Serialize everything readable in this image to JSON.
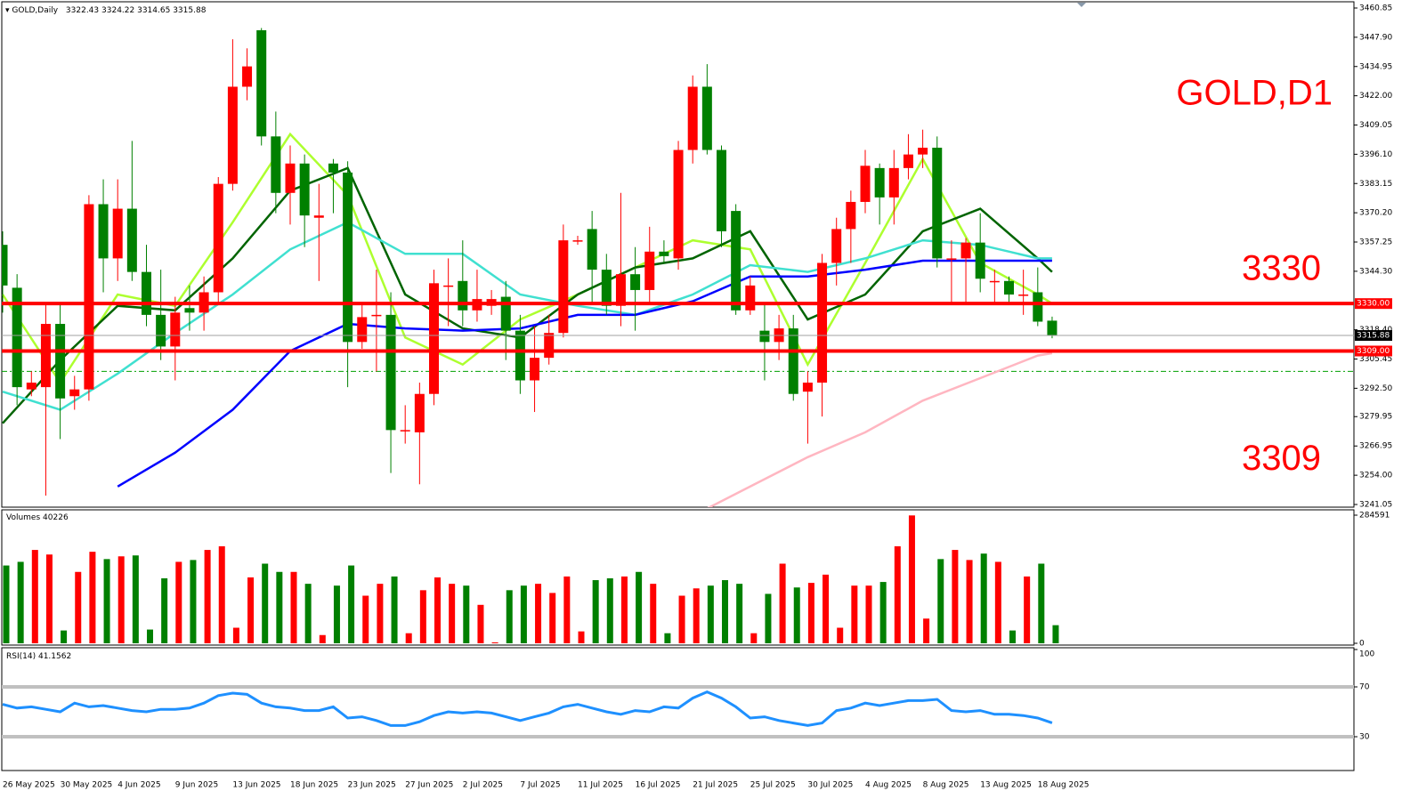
{
  "chart_data": [
    {
      "type": "candlestick",
      "title": "GOLD,Daily",
      "annotation": "GOLD,D1",
      "categories": [
        "26 May 2025",
        null,
        null,
        null,
        "30 May 2025",
        null,
        null,
        null,
        "4 Jun 2025",
        null,
        null,
        null,
        "9 Jun 2025",
        null,
        null,
        null,
        "13 Jun 2025",
        null,
        null,
        null,
        "18 Jun 2025",
        null,
        null,
        null,
        "23 Jun 2025",
        null,
        null,
        null,
        "27 Jun 2025",
        null,
        null,
        null,
        "2 Jul 2025",
        null,
        null,
        null,
        "7 Jul 2025",
        null,
        null,
        null,
        "11 Jul 2025",
        null,
        null,
        null,
        "16 Jul 2025",
        null,
        null,
        null,
        "21 Jul 2025",
        null,
        null,
        null,
        "25 Jul 2025",
        null,
        null,
        null,
        "30 Jul 2025",
        null,
        null,
        null,
        "4 Aug 2025",
        null,
        null,
        null,
        "8 Aug 2025",
        null,
        null,
        null,
        "13 Aug 2025",
        null,
        null,
        null,
        "18 Aug 2025",
        null
      ],
      "open": [
        3356,
        3337,
        3292,
        3293,
        3321,
        3289,
        3292,
        3374,
        3350,
        3372,
        3344,
        3325,
        3311,
        3328,
        3326,
        3335,
        3383,
        3426,
        3451,
        3404,
        3379,
        3392,
        3368,
        3392,
        3388,
        3313,
        3325,
        3325,
        3274,
        3273,
        3290,
        3338,
        3340,
        3327,
        3329,
        3333,
        3318,
        3296,
        3306,
        3317,
        3358,
        3363,
        3345,
        3329,
        3343,
        3336,
        3353,
        3350,
        3398,
        3426,
        3398,
        3371,
        3327,
        3318,
        3313,
        3319,
        3291,
        3295,
        3348,
        3363,
        3375,
        3390,
        3377,
        3390,
        3396,
        3399,
        3350,
        3350,
        3357,
        3340,
        3340,
        3334,
        3335,
        3322.43
      ],
      "high": [
        3362,
        3343,
        3300,
        3330,
        3330,
        3298,
        3378,
        3385,
        3385,
        3402,
        3356,
        3345,
        3333,
        3338,
        3342,
        3386,
        3447,
        3443,
        3452,
        3415,
        3400,
        3396,
        3383,
        3394,
        3393,
        3330,
        3345,
        3335,
        3285,
        3295,
        3345,
        3350,
        3358,
        3345,
        3336,
        3340,
        3325,
        3320,
        3325,
        3365,
        3360,
        3371,
        3352,
        3379,
        3355,
        3364,
        3358,
        3402,
        3431,
        3436,
        3400,
        3374,
        3342,
        3330,
        3325,
        3325,
        3300,
        3352,
        3368,
        3380,
        3398,
        3392,
        3398,
        3405,
        3407,
        3404,
        3358,
        3359,
        3370,
        3345,
        3342,
        3345,
        3346,
        3324.22
      ],
      "low": [
        3326,
        3285,
        3289,
        3245,
        3270,
        3283,
        3287,
        3335,
        3340,
        3340,
        3320,
        3305,
        3296,
        3318,
        3318,
        3330,
        3380,
        3420,
        3400,
        3370,
        3365,
        3355,
        3340,
        3370,
        3293,
        3310,
        3300,
        3255,
        3268,
        3250,
        3285,
        3320,
        3320,
        3322,
        3325,
        3305,
        3290,
        3282,
        3303,
        3315,
        3356,
        3330,
        3325,
        3320,
        3318,
        3330,
        3348,
        3345,
        3392,
        3396,
        3355,
        3325,
        3325,
        3296,
        3305,
        3287,
        3268,
        3280,
        3338,
        3348,
        3370,
        3365,
        3365,
        3385,
        3390,
        3346,
        3330,
        3330,
        3335,
        3330,
        3330,
        3325,
        3320,
        3314.65
      ],
      "close": [
        3338,
        3293,
        3295,
        3321,
        3288,
        3292,
        3374,
        3350,
        3372,
        3344,
        3325,
        3311,
        3326,
        3326,
        3335,
        3383,
        3426,
        3435,
        3404,
        3379,
        3392,
        3369,
        3369,
        3388,
        3313,
        3324,
        3325,
        3274,
        3274,
        3290,
        3339,
        3338,
        3327,
        3332,
        3332,
        3318,
        3296,
        3306,
        3317,
        3358,
        3358,
        3345,
        3329,
        3343,
        3336,
        3353,
        3351,
        3398,
        3426,
        3398,
        3362,
        3327,
        3338,
        3313,
        3319,
        3290,
        3295,
        3348,
        3363,
        3375,
        3391,
        3377,
        3390,
        3396,
        3399,
        3350,
        3350,
        3357,
        3341,
        3340,
        3334,
        3334,
        3322,
        3315.88
      ],
      "up_color": "#ff0000",
      "down_color": "#008000",
      "ylim": [
        3241.05,
        3460.85
      ],
      "yticks": [
        3460.85,
        {
          "value": 3447.9,
          "label": "3447.90"
        },
        3434.95,
        {
          "value": 3422,
          "label": "3422.00"
        },
        3409.05,
        {
          "value": 3396.1,
          "label": "3396.10"
        },
        3383.15,
        {
          "value": 3370.2,
          "label": "3370.20"
        },
        3357.25,
        {
          "value": 3344.3,
          "label": "3344.30"
        },
        {
          "value": 3318.4,
          "label": "3318.40"
        },
        3305.45,
        {
          "value": 3292.5,
          "label": "3292.50"
        },
        3279.95,
        3266.95,
        {
          "value": 3254,
          "label": "3254.00"
        },
        3241.05
      ],
      "lines": [
        {
          "color": "#adff2f",
          "x": [
            0,
            4,
            8,
            12,
            16,
            20,
            24,
            28,
            32,
            36,
            40,
            44,
            48,
            52,
            56,
            60,
            64,
            68,
            72,
            73
          ],
          "values": [
            3334,
            3295,
            3334,
            3329,
            3366,
            3405,
            3378,
            3315,
            3303,
            3323,
            3334,
            3346,
            3358,
            3354,
            3303,
            3348,
            3394,
            3348,
            3334,
            3330
          ]
        },
        {
          "color": "#006400",
          "x": [
            0,
            4,
            8,
            12,
            16,
            20,
            24,
            28,
            32,
            36,
            40,
            44,
            48,
            52,
            56,
            60,
            64,
            68,
            72,
            73
          ],
          "values": [
            3277,
            3305,
            3329,
            3327,
            3350,
            3380,
            3390,
            3334,
            3319,
            3315,
            3334,
            3346,
            3350,
            3362,
            3323,
            3334,
            3362,
            3372,
            3350,
            3344
          ]
        },
        {
          "color": "#40e0d0",
          "x": [
            0,
            4,
            8,
            12,
            16,
            20,
            24,
            28,
            32,
            36,
            40,
            44,
            48,
            52,
            56,
            60,
            64,
            68,
            72,
            73
          ],
          "values": [
            3291,
            3283,
            3299,
            3317,
            3334,
            3354,
            3366,
            3352,
            3352,
            3334,
            3329,
            3325,
            3334,
            3347,
            3344,
            3350,
            3358,
            3356,
            3350,
            3350
          ]
        },
        {
          "color": "#0000ff",
          "x": [
            0,
            4,
            8,
            12,
            16,
            20,
            24,
            28,
            32,
            36,
            40,
            44,
            48,
            52,
            56,
            60,
            64,
            68,
            72,
            73
          ],
          "values": [
            null,
            null,
            3249,
            3264,
            3283,
            3309,
            3321,
            3319,
            3318,
            3319,
            3325,
            3325,
            3331,
            3342,
            3342,
            3345,
            3349,
            3349,
            3349,
            3349
          ]
        },
        {
          "color": "#ffb6c1",
          "x": [
            0,
            4,
            8,
            12,
            16,
            20,
            24,
            28,
            32,
            36,
            40,
            44,
            48,
            52,
            56,
            60,
            64,
            68,
            72,
            73
          ],
          "values": [
            null,
            null,
            null,
            null,
            null,
            null,
            null,
            null,
            null,
            null,
            null,
            null,
            3236,
            3249,
            3262,
            3273,
            3287,
            3297,
            3307,
            3308
          ]
        }
      ],
      "levels": [
        {
          "value": 3330,
          "label": "3330.00"
        },
        {
          "value": 3309,
          "label": "3309.00"
        }
      ],
      "level_color": "#ff0000",
      "order_level": 3300,
      "order_color": "#00a000"
    },
    {
      "type": "bar",
      "title": "Volumes",
      "values": [
        172805,
        180937,
        207366,
        197201,
        28462,
        158574,
        203300,
        187036,
        193135,
        195168,
        30495,
        144343,
        180937,
        185003,
        207366,
        215498,
        34561,
        146376,
        176871,
        158574,
        158574,
        132145,
        18297,
        128079,
        172805,
        105716,
        132145,
        148409,
        22363,
        117914,
        146376,
        132145,
        128079,
        85386,
        2033,
        117914,
        128079,
        132145,
        111815,
        148409,
        26429,
        140277,
        144343,
        148409,
        158574,
        132145,
        22363,
        105716,
        121980,
        128079,
        140277,
        132145,
        22363,
        109782,
        176871,
        124013,
        134178,
        152475,
        34561,
        128079,
        128079,
        136211,
        215498,
        284000,
        54891,
        187036,
        207366,
        185003,
        199234,
        180937,
        28462,
        148409,
        176871,
        40226
      ],
      "ylim": [
        0,
        284591
      ],
      "yticks": [
        0,
        284591
      ]
    },
    {
      "type": "line",
      "title": "RSI(14)",
      "color": "#1e90ff",
      "values": [
        56,
        53,
        54,
        52,
        50,
        57,
        54,
        55,
        53,
        51,
        50,
        52,
        52,
        53,
        57,
        63,
        65,
        64,
        57,
        54,
        53,
        51,
        51,
        54,
        45,
        46,
        43,
        39,
        39,
        42,
        47,
        50,
        49,
        50,
        49,
        46,
        43,
        46,
        49,
        54,
        56,
        53,
        50,
        48,
        51,
        50,
        54,
        53,
        61,
        66,
        61,
        54,
        45,
        46,
        43,
        41,
        39,
        41,
        51,
        53,
        57,
        55,
        57,
        59,
        59,
        60,
        51,
        50,
        51,
        48,
        48,
        47,
        45,
        41.1562
      ],
      "ylim": [
        0,
        100
      ],
      "yticks": [
        100,
        70,
        30
      ],
      "levels": [
        70,
        30
      ],
      "level_color": "#c0c0c0"
    }
  ]
}
